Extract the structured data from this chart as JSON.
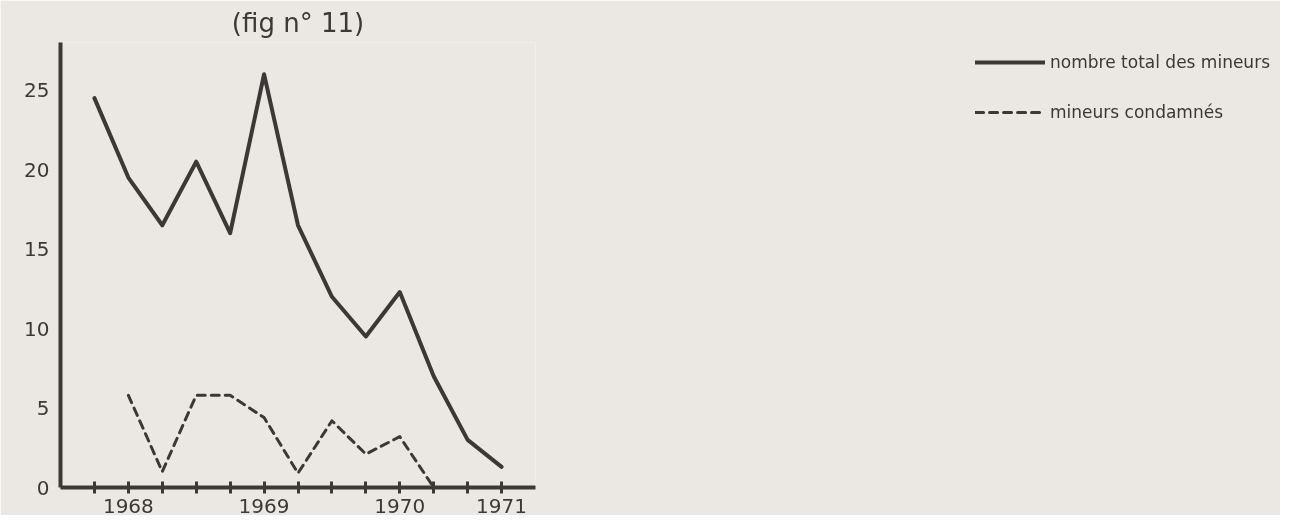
{
  "chart_data": {
    "type": "line",
    "title": "(fig n° 11)",
    "categories": [
      null,
      "1968",
      null,
      null,
      null,
      "1969",
      null,
      null,
      null,
      "1970",
      null,
      null,
      "1971"
    ],
    "ylim": [
      0,
      28
    ],
    "yticks": [
      0,
      5,
      10,
      15,
      20,
      25
    ],
    "series": [
      {
        "name": "nombre total des mineurs",
        "color": "#3d3835",
        "line_style": "solid",
        "values": [
          24.5,
          19.5,
          16.5,
          20.5,
          16,
          26,
          16.5,
          12,
          9.5,
          12.3,
          7,
          3,
          1.3
        ]
      },
      {
        "name": "mineurs condamnés",
        "color": "#3d3835",
        "line_style": "dashed",
        "values": [
          null,
          5.8,
          1,
          5.8,
          5.8,
          4.4,
          0.9,
          4.2,
          2.1,
          3.2,
          0,
          0,
          null
        ]
      }
    ],
    "grid": false,
    "legend": "right",
    "marker": "none"
  }
}
